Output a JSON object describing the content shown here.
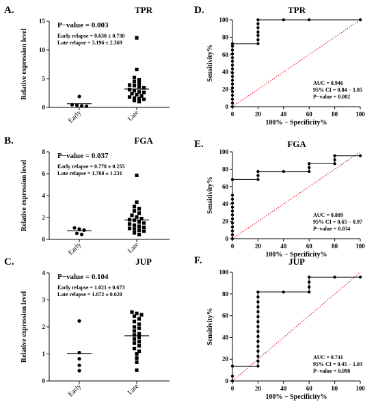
{
  "figure": {
    "charts": [
      {
        "id": "A",
        "type": "scatter",
        "panel_label": "A.",
        "title": "TPR",
        "p_value": "P−value = 0.003",
        "stats": [
          "Early relapse = 0.630 ± 0.730",
          "Late relapse = 3.196 ± 2.369"
        ],
        "ylabel": "Relative expression level",
        "categories": [
          "Early",
          "Late"
        ],
        "ylim": [
          0,
          15
        ],
        "yticks": [
          0,
          5,
          10,
          15
        ],
        "means": [
          0.63,
          3.196
        ],
        "series": [
          {
            "category": "Early",
            "marker": "circle",
            "values": [
              1.9,
              0.45,
              0.35,
              0.2,
              0.25
            ]
          },
          {
            "category": "Late",
            "marker": "square",
            "values": [
              12.1,
              6.6,
              5.2,
              4.8,
              4.5,
              4.2,
              3.9,
              3.8,
              3.6,
              3.4,
              3.1,
              2.9,
              2.7,
              2.6,
              2.4,
              2.2,
              2.0,
              1.8,
              1.6,
              1.5,
              1.4,
              1.2,
              1.0
            ]
          }
        ]
      },
      {
        "id": "D",
        "type": "line",
        "panel_label": "D.",
        "title": "TPR",
        "xlabel": "100% − Specificity%",
        "ylabel": "Sensitivity%",
        "xlim": [
          0,
          100
        ],
        "ylim": [
          0,
          100
        ],
        "xticks": [
          0,
          20,
          40,
          60,
          80,
          100
        ],
        "yticks": [
          0,
          20,
          40,
          60,
          80,
          100
        ],
        "stats": [
          "AUC = 0.946",
          "95% CI = 0.84 − 1.05",
          "P−value = 0.002"
        ],
        "roc": [
          [
            0,
            0
          ],
          [
            0,
            4.3
          ],
          [
            0,
            8.7
          ],
          [
            0,
            13
          ],
          [
            0,
            17.4
          ],
          [
            0,
            21.7
          ],
          [
            0,
            26.1
          ],
          [
            0,
            30.4
          ],
          [
            0,
            34.8
          ],
          [
            0,
            39.1
          ],
          [
            0,
            43.5
          ],
          [
            0,
            47.8
          ],
          [
            0,
            52.2
          ],
          [
            0,
            56.5
          ],
          [
            0,
            60.9
          ],
          [
            0,
            65.2
          ],
          [
            0,
            69.6
          ],
          [
            0,
            72.5
          ],
          [
            20,
            72.5
          ],
          [
            20,
            77
          ],
          [
            20,
            82
          ],
          [
            20,
            86
          ],
          [
            20,
            91
          ],
          [
            20,
            95.5
          ],
          [
            20,
            100
          ],
          [
            40,
            100
          ],
          [
            60,
            100
          ],
          [
            100,
            100
          ]
        ],
        "reference_line": [
          [
            0,
            0
          ],
          [
            100,
            100
          ]
        ]
      },
      {
        "id": "B",
        "type": "scatter",
        "panel_label": "B.",
        "title": "FGA",
        "p_value": "P−value = 0.037",
        "stats": [
          "Early relapse = 0.778 ± 0.255",
          "Late relapse = 1.768 ± 1.231"
        ],
        "ylabel": "Relative expression level",
        "categories": [
          "Early",
          "Late"
        ],
        "ylim": [
          0,
          8
        ],
        "yticks": [
          0,
          2,
          4,
          6,
          8
        ],
        "means": [
          0.778,
          1.768
        ],
        "series": [
          {
            "category": "Early",
            "marker": "circle",
            "values": [
              1.05,
              0.95,
              0.85,
              0.55,
              0.45
            ]
          },
          {
            "category": "Late",
            "marker": "square",
            "values": [
              5.85,
              3.4,
              3.0,
              2.8,
              2.6,
              2.4,
              2.2,
              2.05,
              1.9,
              1.8,
              1.75,
              1.6,
              1.5,
              1.4,
              1.3,
              1.2,
              1.1,
              1.0,
              0.95,
              0.85,
              0.75,
              0.6,
              0.45
            ]
          }
        ]
      },
      {
        "id": "E",
        "type": "line",
        "panel_label": "E.",
        "title": "FGA",
        "xlabel": "100% − Specificity%",
        "ylabel": "Sensitivity%",
        "xlim": [
          0,
          100
        ],
        "ylim": [
          0,
          100
        ],
        "xticks": [
          0,
          20,
          40,
          60,
          80,
          100
        ],
        "yticks": [
          0,
          20,
          40,
          60,
          80,
          100
        ],
        "stats": [
          "AUC = 0.809",
          "95% CI = 0.65 − 0.97",
          "P−value = 0.034"
        ],
        "roc": [
          [
            0,
            0
          ],
          [
            0,
            4.5
          ],
          [
            0,
            9
          ],
          [
            0,
            13.6
          ],
          [
            0,
            18.2
          ],
          [
            0,
            22.7
          ],
          [
            0,
            27.3
          ],
          [
            0,
            31.8
          ],
          [
            0,
            36.4
          ],
          [
            0,
            40.9
          ],
          [
            0,
            45.5
          ],
          [
            0,
            50
          ],
          [
            0,
            68.2
          ],
          [
            20,
            68.2
          ],
          [
            20,
            72.7
          ],
          [
            20,
            77.3
          ],
          [
            40,
            77.3
          ],
          [
            60,
            77.3
          ],
          [
            60,
            81.8
          ],
          [
            60,
            86.4
          ],
          [
            80,
            86.4
          ],
          [
            80,
            90.9
          ],
          [
            80,
            95.5
          ],
          [
            100,
            95.5
          ]
        ],
        "reference_line": [
          [
            0,
            0
          ],
          [
            100,
            100
          ]
        ]
      },
      {
        "id": "C",
        "type": "scatter",
        "panel_label": "C.",
        "title": "JUP",
        "p_value": "P−value = 0.104",
        "stats": [
          "Early relapse = 1.021 ± 0.673",
          "Late relapse = 1.672 ± 0.620"
        ],
        "ylabel": "Relative expression level",
        "categories": [
          "Early",
          "Late"
        ],
        "ylim": [
          0,
          4
        ],
        "yticks": [
          0,
          1,
          2,
          3,
          4
        ],
        "means": [
          1.021,
          1.672
        ],
        "series": [
          {
            "category": "Early",
            "marker": "circle",
            "values": [
              2.22,
              1.05,
              0.82,
              0.58,
              0.38
            ]
          },
          {
            "category": "Late",
            "marker": "square",
            "values": [
              2.55,
              2.5,
              2.45,
              2.4,
              2.3,
              2.2,
              2.1,
              2.0,
              1.95,
              1.85,
              1.75,
              1.7,
              1.6,
              1.55,
              1.45,
              1.4,
              1.3,
              1.2,
              1.1,
              1.0,
              0.85,
              0.7,
              0.4
            ]
          }
        ]
      },
      {
        "id": "F",
        "type": "line",
        "panel_label": "F.",
        "title": "JUP",
        "xlabel": "100% − Specificity%",
        "ylabel": "Sensitivity%",
        "xlim": [
          0,
          100
        ],
        "ylim": [
          0,
          100
        ],
        "xticks": [
          0,
          20,
          40,
          60,
          80,
          100
        ],
        "yticks": [
          0,
          20,
          40,
          60,
          80,
          100
        ],
        "stats": [
          "AUC = 0.741",
          "95% CI = 0.45 − 1.03",
          "P−value = 0.098"
        ],
        "roc": [
          [
            0,
            0
          ],
          [
            0,
            4.5
          ],
          [
            0,
            13.6
          ],
          [
            20,
            13.6
          ],
          [
            20,
            18.2
          ],
          [
            20,
            22.7
          ],
          [
            20,
            27.3
          ],
          [
            20,
            31.8
          ],
          [
            20,
            36.4
          ],
          [
            20,
            40.9
          ],
          [
            20,
            45.5
          ],
          [
            20,
            50
          ],
          [
            20,
            54.5
          ],
          [
            20,
            59.1
          ],
          [
            20,
            63.6
          ],
          [
            20,
            68.2
          ],
          [
            20,
            72.7
          ],
          [
            20,
            77.3
          ],
          [
            20,
            81.8
          ],
          [
            40,
            81.8
          ],
          [
            60,
            81.8
          ],
          [
            60,
            86.4
          ],
          [
            60,
            90.9
          ],
          [
            60,
            95.5
          ],
          [
            80,
            95.5
          ],
          [
            100,
            95.5
          ]
        ],
        "reference_line": [
          [
            0,
            0
          ],
          [
            100,
            100
          ]
        ]
      }
    ]
  }
}
